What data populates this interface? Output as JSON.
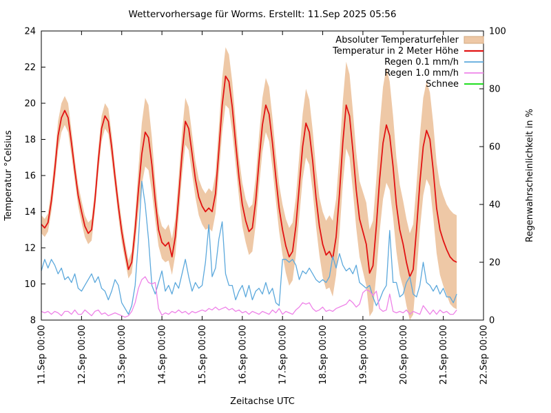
{
  "chart_data": {
    "type": "line",
    "title": "Wettervorhersage für Worms. Erstellt: 11.Sep 2025 05:56",
    "xlabel": "Zeitachse UTC",
    "ylabel_left": "Temperatur °Celsius",
    "ylabel_right": "Regenwahrscheinlichkeit in %",
    "ylim_left": [
      8,
      24
    ],
    "yticks_left": [
      8,
      10,
      12,
      14,
      16,
      18,
      20,
      22,
      24
    ],
    "ylim_right": [
      0,
      100
    ],
    "yticks_right": [
      0,
      20,
      40,
      60,
      80,
      100
    ],
    "xlim_hours": [
      0,
      264
    ],
    "x_tick_interval_hours": 24,
    "x_ticks": [
      "11.Sep 00:00",
      "12.Sep 00:00",
      "13.Sep 00:00",
      "14.Sep 00:00",
      "15.Sep 00:00",
      "16.Sep 00:00",
      "17.Sep 00:00",
      "18.Sep 00:00",
      "19.Sep 00:00",
      "20.Sep 00:00",
      "21.Sep 00:00",
      "22.Sep 00:00"
    ],
    "grid": "off",
    "legend_position": "top-right-inside",
    "time_start_hour": 0,
    "time_step_hours": 2,
    "series": [
      {
        "name": "Absoluter Temperaturfehler",
        "kind": "band",
        "axis": "left",
        "color": "#eec8a6",
        "edge_color": "#d3a87f",
        "half_width": [
          0.5,
          0.5,
          0.5,
          0.6,
          0.7,
          0.8,
          0.8,
          0.8,
          0.8,
          0.7,
          0.6,
          0.6,
          0.6,
          0.6,
          0.6,
          0.6,
          0.6,
          0.7,
          0.7,
          0.7,
          0.7,
          0.7,
          0.6,
          0.6,
          0.6,
          0.5,
          0.5,
          0.6,
          0.8,
          1.2,
          1.7,
          1.9,
          1.8,
          1.5,
          1.1,
          0.9,
          0.9,
          0.9,
          1.0,
          1.0,
          1.0,
          1.1,
          1.2,
          1.3,
          1.2,
          1.1,
          1.0,
          1.0,
          1.0,
          1.0,
          1.1,
          1.1,
          1.1,
          1.3,
          1.5,
          1.6,
          1.5,
          1.4,
          1.2,
          1.1,
          1.2,
          1.2,
          1.3,
          1.3,
          1.3,
          1.4,
          1.5,
          1.5,
          1.5,
          1.4,
          1.3,
          1.3,
          1.4,
          1.5,
          1.6,
          1.6,
          1.6,
          1.7,
          1.8,
          1.9,
          1.8,
          1.7,
          1.6,
          1.6,
          1.8,
          1.9,
          2.0,
          2.1,
          2.1,
          2.2,
          2.3,
          2.4,
          2.3,
          2.2,
          2.1,
          2.1,
          2.2,
          2.3,
          2.4,
          2.5,
          2.6,
          2.9,
          3.1,
          3.2,
          3.0,
          2.8,
          2.6,
          2.5,
          2.4,
          2.4,
          2.4,
          2.5,
          2.5,
          2.6,
          2.7,
          2.7,
          2.6,
          2.6,
          2.5,
          2.5,
          2.5,
          2.5,
          2.6,
          2.6,
          2.6
        ]
      },
      {
        "name": "Temperatur in 2 Meter Höhe",
        "kind": "line",
        "axis": "left",
        "color": "#e11212",
        "width": 1.8,
        "values": [
          13.3,
          13.1,
          13.4,
          14.6,
          16.3,
          18.2,
          19.2,
          19.6,
          19.2,
          17.8,
          16.3,
          14.9,
          14.0,
          13.2,
          12.8,
          13.0,
          14.6,
          16.8,
          18.6,
          19.3,
          19.0,
          17.6,
          15.9,
          14.3,
          12.9,
          11.8,
          10.8,
          11.2,
          13.0,
          15.2,
          17.2,
          18.4,
          18.1,
          16.6,
          14.6,
          13.0,
          12.3,
          12.1,
          12.3,
          11.5,
          12.6,
          14.8,
          17.2,
          19.0,
          18.6,
          17.2,
          15.8,
          14.8,
          14.3,
          14.0,
          14.2,
          14.0,
          15.0,
          17.4,
          19.9,
          21.5,
          21.2,
          19.8,
          17.8,
          15.9,
          14.4,
          13.5,
          12.9,
          13.1,
          14.6,
          16.8,
          18.8,
          19.9,
          19.4,
          17.8,
          15.9,
          14.2,
          13.0,
          12.1,
          11.5,
          11.8,
          13.2,
          15.4,
          17.6,
          18.9,
          18.4,
          16.8,
          14.8,
          13.2,
          12.2,
          11.6,
          11.8,
          11.4,
          12.6,
          15.0,
          17.8,
          19.9,
          19.3,
          17.4,
          15.2,
          13.6,
          12.9,
          12.2,
          10.6,
          11.0,
          13.2,
          15.8,
          17.8,
          18.8,
          18.2,
          16.5,
          14.4,
          13.0,
          12.2,
          11.2,
          10.4,
          10.8,
          13.0,
          15.6,
          17.6,
          18.5,
          18.0,
          16.3,
          14.2,
          13.0,
          12.4,
          11.9,
          11.5,
          11.3,
          11.2
        ]
      },
      {
        "name": "Regen 0.1 mm/h",
        "kind": "line",
        "axis": "right",
        "color": "#5ba8dc",
        "width": 1.3,
        "values": [
          17,
          21,
          18,
          21,
          19,
          16,
          18,
          14,
          15,
          13,
          16,
          11,
          10,
          12,
          14,
          16,
          13,
          15,
          11,
          10,
          7,
          10,
          14,
          12,
          6,
          4,
          2,
          5,
          12,
          28,
          48,
          40,
          28,
          12,
          9,
          13,
          17,
          10,
          12,
          9,
          13,
          11,
          16,
          21,
          15,
          10,
          13,
          11,
          12,
          20,
          33,
          15,
          18,
          28,
          34,
          16,
          12,
          12,
          7,
          10,
          12,
          8,
          12,
          7,
          10,
          11,
          9,
          13,
          9,
          11,
          6,
          5,
          21,
          21,
          20,
          21,
          19,
          14,
          17,
          16,
          18,
          16,
          14,
          13,
          14,
          13,
          15,
          22,
          18,
          23,
          19,
          17,
          18,
          16,
          19,
          13,
          12,
          11,
          12,
          8,
          5,
          7,
          10,
          12,
          31,
          13,
          13,
          8,
          9,
          13,
          15,
          9,
          8,
          12,
          20,
          13,
          12,
          10,
          12,
          9,
          11,
          8,
          8,
          6,
          9
        ]
      },
      {
        "name": "Regen 1.0 mm/h",
        "kind": "line",
        "axis": "right",
        "color": "#ee82e8",
        "width": 1.3,
        "values": [
          3,
          2.5,
          3,
          2,
          3,
          2.5,
          1.5,
          3,
          3,
          2,
          3.5,
          2,
          2,
          3.5,
          2.5,
          1.5,
          3,
          3.5,
          2,
          2.5,
          1.5,
          2,
          2.5,
          2,
          1.5,
          1,
          1.5,
          3,
          6,
          11,
          14,
          15,
          13,
          12.5,
          13,
          4,
          1.7,
          2.5,
          2,
          3,
          2.5,
          3.5,
          2.5,
          3,
          2,
          3,
          2.5,
          3,
          3.5,
          3,
          4,
          3.5,
          4.5,
          3.5,
          4,
          4.5,
          3.5,
          4,
          3,
          3.5,
          2.5,
          3,
          2,
          3,
          2.5,
          2,
          3,
          2.5,
          2,
          3.5,
          2.5,
          4,
          2,
          3,
          2.5,
          2,
          3.5,
          4.5,
          6,
          5.5,
          6,
          4,
          3,
          3.5,
          4.5,
          3,
          3.5,
          3,
          4,
          4.5,
          5,
          5.5,
          7,
          6,
          4.5,
          5.5,
          9.5,
          10.5,
          10,
          8.5,
          10,
          4,
          3,
          3.5,
          9,
          3,
          2.5,
          3,
          2.5,
          3.5,
          2,
          3,
          2.5,
          2,
          5,
          3.5,
          2,
          3.5,
          2,
          3.5,
          2.5,
          3,
          2,
          2,
          3.5
        ]
      },
      {
        "name": "Schnee",
        "kind": "line",
        "axis": "right",
        "color": "#00d900",
        "width": 1.3,
        "values": []
      }
    ]
  }
}
